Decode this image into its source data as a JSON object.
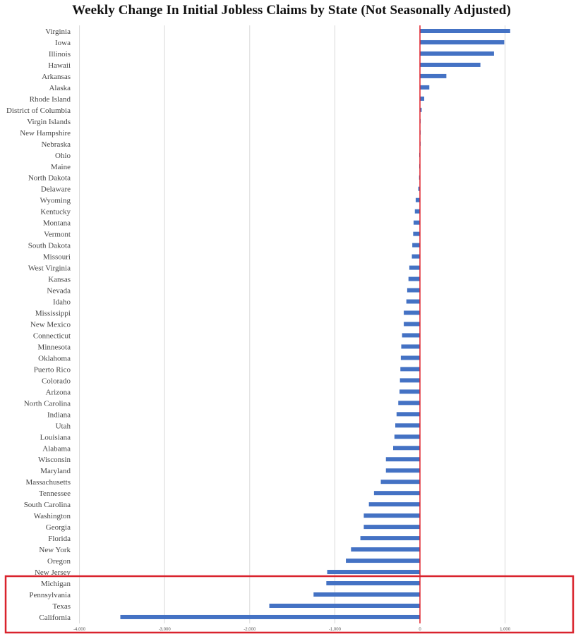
{
  "chart_data": {
    "type": "bar",
    "orientation": "horizontal",
    "title": "Weekly Change In Initial Jobless Claims by State (Not Seasonally Adjusted)",
    "xlabel": "",
    "ylabel": "",
    "xlim": [
      -4000,
      1500
    ],
    "x_ticks": [
      -4000,
      -3000,
      -2000,
      -1000,
      0,
      1000
    ],
    "x_tick_labels": [
      "-4,000",
      "-3,000",
      "-2,000",
      "-1,000",
      "0",
      "1,000"
    ],
    "grid": true,
    "legend": "none",
    "bar_color": "#4472c4",
    "zero_line_color": "#e0242b",
    "highlight_color": "#d9232d",
    "highlighted_categories": [
      "Michigan",
      "Pennsylvania",
      "Texas",
      "California"
    ],
    "categories": [
      "Virginia",
      "Iowa",
      "Illinois",
      "Hawaii",
      "Arkansas",
      "Alaska",
      "Rhode Island",
      "District of Columbia",
      "Virgin Islands",
      "New Hampshire",
      "Nebraska",
      "Ohio",
      "Maine",
      "North Dakota",
      "Delaware",
      "Wyoming",
      "Kentucky",
      "Montana",
      "Vermont",
      "South Dakota",
      "Missouri",
      "West Virginia",
      "Kansas",
      "Nevada",
      "Idaho",
      "Mississippi",
      "New Mexico",
      "Connecticut",
      "Minnesota",
      "Oklahoma",
      "Puerto Rico",
      "Colorado",
      "Arizona",
      "North Carolina",
      "Indiana",
      "Utah",
      "Louisiana",
      "Alabama",
      "Wisconsin",
      "Maryland",
      "Massachusetts",
      "Tennessee",
      "South Carolina",
      "Washington",
      "Georgia",
      "Florida",
      "New York",
      "Oregon",
      "New Jersey",
      "Michigan",
      "Pennsylvania",
      "Texas",
      "California"
    ],
    "values": [
      1060,
      990,
      870,
      710,
      310,
      110,
      50,
      20,
      5,
      3,
      2,
      -2,
      -5,
      -10,
      -20,
      -50,
      -60,
      -75,
      -80,
      -90,
      -95,
      -125,
      -135,
      -150,
      -160,
      -190,
      -190,
      -210,
      -220,
      -225,
      -230,
      -235,
      -240,
      -255,
      -275,
      -290,
      -300,
      -315,
      -400,
      -400,
      -460,
      -540,
      -600,
      -660,
      -660,
      -700,
      -810,
      -870,
      -1090,
      -1100,
      -1250,
      -1770,
      -3520
    ]
  }
}
